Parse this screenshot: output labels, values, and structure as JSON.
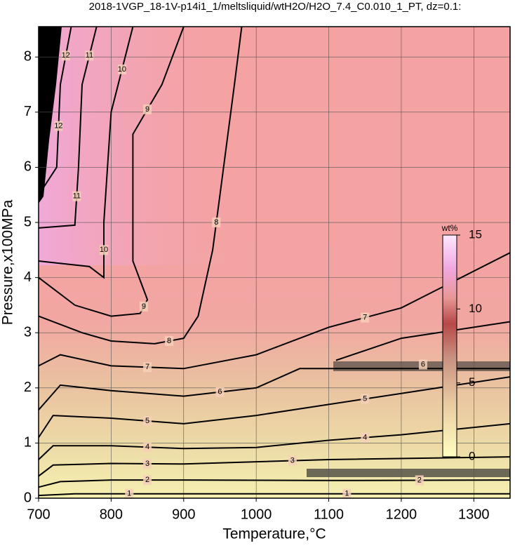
{
  "chart_data": {
    "type": "contour",
    "title": "2018-1VGP_18-1V-p14i1_1/meltsliquid/wtH2O/H2O_7.4_C0.010_1_PT, dz=0.1:",
    "x_label": "Temperature,°C",
    "y_label": "Pressure,x100MPa",
    "xlim": [
      700,
      1350
    ],
    "ylim": [
      0,
      8.55
    ],
    "xticks": [
      700,
      800,
      900,
      1000,
      1100,
      1200,
      1300
    ],
    "yticks": [
      0,
      1,
      2,
      3,
      4,
      5,
      6,
      7,
      8
    ],
    "grid": true,
    "line_color": "#000000",
    "contours": [
      {
        "level": 1,
        "x": [
          700,
          750,
          900,
          1350
        ],
        "y": [
          0.05,
          0.08,
          0.08,
          0.08
        ]
      },
      {
        "level": 2,
        "x": [
          700,
          730,
          800,
          900,
          1100,
          1350
        ],
        "y": [
          0.2,
          0.3,
          0.33,
          0.33,
          0.32,
          0.33
        ]
      },
      {
        "level": 3,
        "x": [
          700,
          720,
          800,
          900,
          1000,
          1100,
          1350
        ],
        "y": [
          0.4,
          0.6,
          0.63,
          0.62,
          0.66,
          0.7,
          0.75
        ]
      },
      {
        "level": 4,
        "x": [
          700,
          720,
          800,
          900,
          1000,
          1100,
          1200,
          1350
        ],
        "y": [
          0.7,
          0.95,
          0.95,
          0.9,
          0.92,
          1.05,
          1.15,
          1.35
        ]
      },
      {
        "level": 5,
        "x": [
          700,
          720,
          800,
          900,
          1000,
          1100,
          1200,
          1350
        ],
        "y": [
          1.1,
          1.5,
          1.45,
          1.35,
          1.5,
          1.7,
          1.9,
          2.2
        ]
      },
      {
        "level": 6,
        "x": [
          700,
          730,
          800,
          900,
          1000,
          1060,
          1350,
          null,
          1110,
          1200,
          1350
        ],
        "y": [
          1.6,
          2.05,
          1.95,
          1.85,
          2.0,
          2.35,
          2.35,
          null,
          2.5,
          2.9,
          3.2
        ]
      },
      {
        "level": 7,
        "x": [
          700,
          730,
          800,
          900,
          1000,
          1100,
          1200,
          1350
        ],
        "y": [
          2.4,
          2.6,
          2.4,
          2.35,
          2.6,
          3.1,
          3.45,
          4.45
        ]
      },
      {
        "level": 8,
        "x": [
          700,
          760,
          800,
          860,
          900,
          920,
          940,
          950,
          970,
          980
        ],
        "y": [
          3.3,
          3.0,
          2.85,
          2.8,
          2.9,
          3.3,
          4.5,
          5.5,
          7.5,
          8.55
        ]
      },
      {
        "level": 9,
        "x": [
          700,
          750,
          800,
          840,
          850,
          830,
          830,
          870,
          900
        ],
        "y": [
          4.0,
          3.5,
          3.3,
          3.35,
          3.6,
          4.3,
          6.6,
          7.5,
          8.55
        ]
      },
      {
        "level": 10,
        "x": [
          700,
          770,
          790,
          790,
          800,
          830
        ],
        "y": [
          4.3,
          4.2,
          4.0,
          5.0,
          7.0,
          8.55
        ]
      },
      {
        "level": 11,
        "x": [
          700,
          750,
          755,
          760,
          780
        ],
        "y": [
          4.9,
          4.95,
          6.0,
          7.5,
          8.55
        ]
      },
      {
        "level": 12,
        "x": [
          705,
          725,
          730,
          745
        ],
        "y": [
          5.6,
          6.0,
          7.5,
          8.55
        ]
      }
    ],
    "colorbar": {
      "label": "wt%",
      "lim": [
        0,
        15
      ],
      "ticks": [
        0,
        5,
        10,
        15
      ]
    }
  }
}
